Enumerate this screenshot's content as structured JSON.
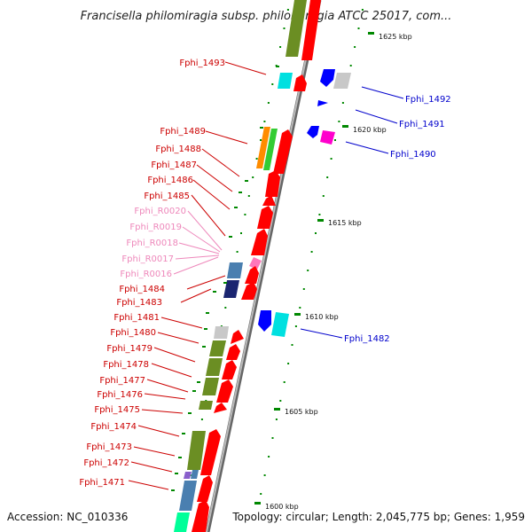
{
  "title": "Francisella philomiragia subsp. philomiragia ATCC 25017, com...",
  "footer": {
    "accession": "Accession: NC_010336",
    "summary": "Topology: circular; Length: 2,045,775 bp; Genes: 1,959"
  },
  "scale": [
    "1625 kbp",
    "1620 kbp",
    "1615 kbp",
    "1610 kbp",
    "1605 kbp",
    "1600 kbp"
  ],
  "colors": {
    "cds": "#ff0000",
    "olive": "#6b8e23",
    "cyan": "#00e0e0",
    "blue": "#0000ff",
    "gray": "#c0c0c0",
    "magenta": "#ff00cc",
    "orange": "#ff8c00",
    "green": "#33cc33",
    "steel": "#4a7fb0",
    "navy": "#1a2570",
    "rna": "#ff77bb",
    "teal": "#00ff99",
    "purple": "#8a5fcc",
    "backbone": "#888888",
    "tick": "#008800",
    "label_red": "#cc0000",
    "label_blue": "#0000cc",
    "label_pink": "#ee88bb"
  },
  "left_labels": [
    {
      "text": "Fphi_1493",
      "kind": "gene"
    },
    {
      "text": "Fphi_1489",
      "kind": "gene"
    },
    {
      "text": "Fphi_1488",
      "kind": "gene"
    },
    {
      "text": "Fphi_1487",
      "kind": "gene"
    },
    {
      "text": "Fphi_1486",
      "kind": "gene"
    },
    {
      "text": "Fphi_1485",
      "kind": "gene"
    },
    {
      "text": "Fphi_R0020",
      "kind": "rna"
    },
    {
      "text": "Fphi_R0019",
      "kind": "rna"
    },
    {
      "text": "Fphi_R0018",
      "kind": "rna"
    },
    {
      "text": "Fphi_R0017",
      "kind": "rna"
    },
    {
      "text": "Fphi_R0016",
      "kind": "rna"
    },
    {
      "text": "Fphi_1484",
      "kind": "gene"
    },
    {
      "text": "Fphi_1483",
      "kind": "gene"
    },
    {
      "text": "Fphi_1481",
      "kind": "gene"
    },
    {
      "text": "Fphi_1480",
      "kind": "gene"
    },
    {
      "text": "Fphi_1479",
      "kind": "gene"
    },
    {
      "text": "Fphi_1478",
      "kind": "gene"
    },
    {
      "text": "Fphi_1477",
      "kind": "gene"
    },
    {
      "text": "Fphi_1476",
      "kind": "gene"
    },
    {
      "text": "Fphi_1475",
      "kind": "gene"
    },
    {
      "text": "Fphi_1474",
      "kind": "gene"
    },
    {
      "text": "Fphi_1473",
      "kind": "gene"
    },
    {
      "text": "Fphi_1472",
      "kind": "gene"
    },
    {
      "text": "Fphi_1471",
      "kind": "gene"
    }
  ],
  "right_labels": [
    {
      "text": "Fphi_1492"
    },
    {
      "text": "Fphi_1491"
    },
    {
      "text": "Fphi_1490"
    },
    {
      "text": "Fphi_1482"
    }
  ]
}
